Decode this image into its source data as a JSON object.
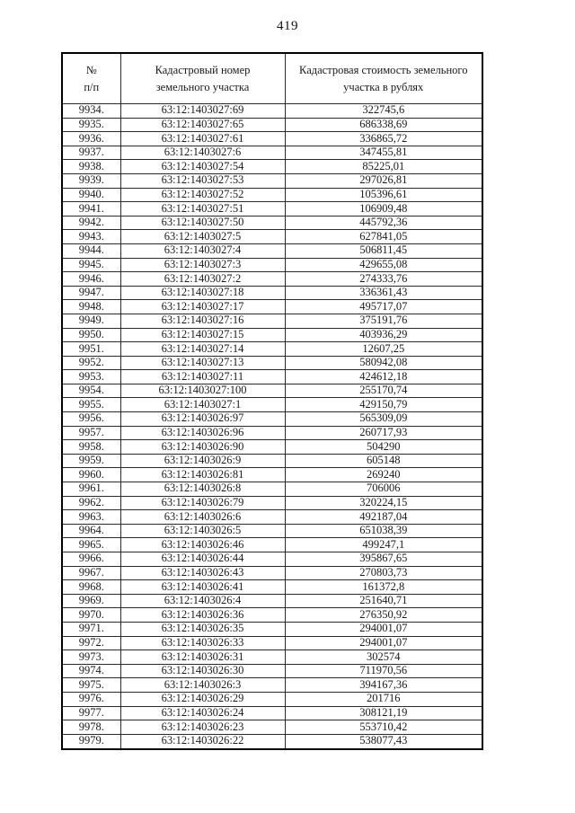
{
  "page": {
    "number": "419"
  },
  "table": {
    "headers": {
      "num": "№\nп/п",
      "cadastral": "Кадастровый номер\nземельного участка",
      "value": "Кадастровая стоимость земельного\nучастка в рублях"
    },
    "rows": [
      {
        "n": "9934.",
        "cad": "63:12:1403027:69",
        "val": "322745,6"
      },
      {
        "n": "9935.",
        "cad": "63:12:1403027:65",
        "val": "686338,69"
      },
      {
        "n": "9936.",
        "cad": "63:12:1403027:61",
        "val": "336865,72"
      },
      {
        "n": "9937.",
        "cad": "63:12:1403027:6",
        "val": "347455,81"
      },
      {
        "n": "9938.",
        "cad": "63:12:1403027:54",
        "val": "85225,01"
      },
      {
        "n": "9939.",
        "cad": "63:12:1403027:53",
        "val": "297026,81"
      },
      {
        "n": "9940.",
        "cad": "63:12:1403027:52",
        "val": "105396,61"
      },
      {
        "n": "9941.",
        "cad": "63:12:1403027:51",
        "val": "106909,48"
      },
      {
        "n": "9942.",
        "cad": "63:12:1403027:50",
        "val": "445792,36"
      },
      {
        "n": "9943.",
        "cad": "63:12:1403027:5",
        "val": "627841,05"
      },
      {
        "n": "9944.",
        "cad": "63:12:1403027:4",
        "val": "506811,45"
      },
      {
        "n": "9945.",
        "cad": "63:12:1403027:3",
        "val": "429655,08"
      },
      {
        "n": "9946.",
        "cad": "63:12:1403027:2",
        "val": "274333,76"
      },
      {
        "n": "9947.",
        "cad": "63:12:1403027:18",
        "val": "336361,43"
      },
      {
        "n": "9948.",
        "cad": "63:12:1403027:17",
        "val": "495717,07"
      },
      {
        "n": "9949.",
        "cad": "63:12:1403027:16",
        "val": "375191,76"
      },
      {
        "n": "9950.",
        "cad": "63:12:1403027:15",
        "val": "403936,29"
      },
      {
        "n": "9951.",
        "cad": "63:12:1403027:14",
        "val": "12607,25"
      },
      {
        "n": "9952.",
        "cad": "63:12:1403027:13",
        "val": "580942,08"
      },
      {
        "n": "9953.",
        "cad": "63:12:1403027:11",
        "val": "424612,18"
      },
      {
        "n": "9954.",
        "cad": "63:12:1403027:100",
        "val": "255170,74"
      },
      {
        "n": "9955.",
        "cad": "63:12:1403027:1",
        "val": "429150,79"
      },
      {
        "n": "9956.",
        "cad": "63:12:1403026:97",
        "val": "565309,09"
      },
      {
        "n": "9957.",
        "cad": "63:12:1403026:96",
        "val": "260717,93"
      },
      {
        "n": "9958.",
        "cad": "63:12:1403026:90",
        "val": "504290"
      },
      {
        "n": "9959.",
        "cad": "63:12:1403026:9",
        "val": "605148"
      },
      {
        "n": "9960.",
        "cad": "63:12:1403026:81",
        "val": "269240"
      },
      {
        "n": "9961.",
        "cad": "63:12:1403026:8",
        "val": "706006"
      },
      {
        "n": "9962.",
        "cad": "63:12:1403026:79",
        "val": "320224,15"
      },
      {
        "n": "9963.",
        "cad": "63:12:1403026:6",
        "val": "492187,04"
      },
      {
        "n": "9964.",
        "cad": "63:12:1403026:5",
        "val": "651038,39"
      },
      {
        "n": "9965.",
        "cad": "63:12:1403026:46",
        "val": "499247,1"
      },
      {
        "n": "9966.",
        "cad": "63:12:1403026:44",
        "val": "395867,65"
      },
      {
        "n": "9967.",
        "cad": "63:12:1403026:43",
        "val": "270803,73"
      },
      {
        "n": "9968.",
        "cad": "63:12:1403026:41",
        "val": "161372,8"
      },
      {
        "n": "9969.",
        "cad": "63:12:1403026:4",
        "val": "251640,71"
      },
      {
        "n": "9970.",
        "cad": "63:12:1403026:36",
        "val": "276350,92"
      },
      {
        "n": "9971.",
        "cad": "63:12:1403026:35",
        "val": "294001,07"
      },
      {
        "n": "9972.",
        "cad": "63:12:1403026:33",
        "val": "294001,07"
      },
      {
        "n": "9973.",
        "cad": "63:12:1403026:31",
        "val": "302574"
      },
      {
        "n": "9974.",
        "cad": "63:12:1403026:30",
        "val": "711970,56"
      },
      {
        "n": "9975.",
        "cad": "63:12:1403026:3",
        "val": "394167,36"
      },
      {
        "n": "9976.",
        "cad": "63:12:1403026:29",
        "val": "201716"
      },
      {
        "n": "9977.",
        "cad": "63:12:1403026:24",
        "val": "308121,19"
      },
      {
        "n": "9978.",
        "cad": "63:12:1403026:23",
        "val": "553710,42"
      },
      {
        "n": "9979.",
        "cad": "63:12:1403026:22",
        "val": "538077,43"
      }
    ]
  }
}
